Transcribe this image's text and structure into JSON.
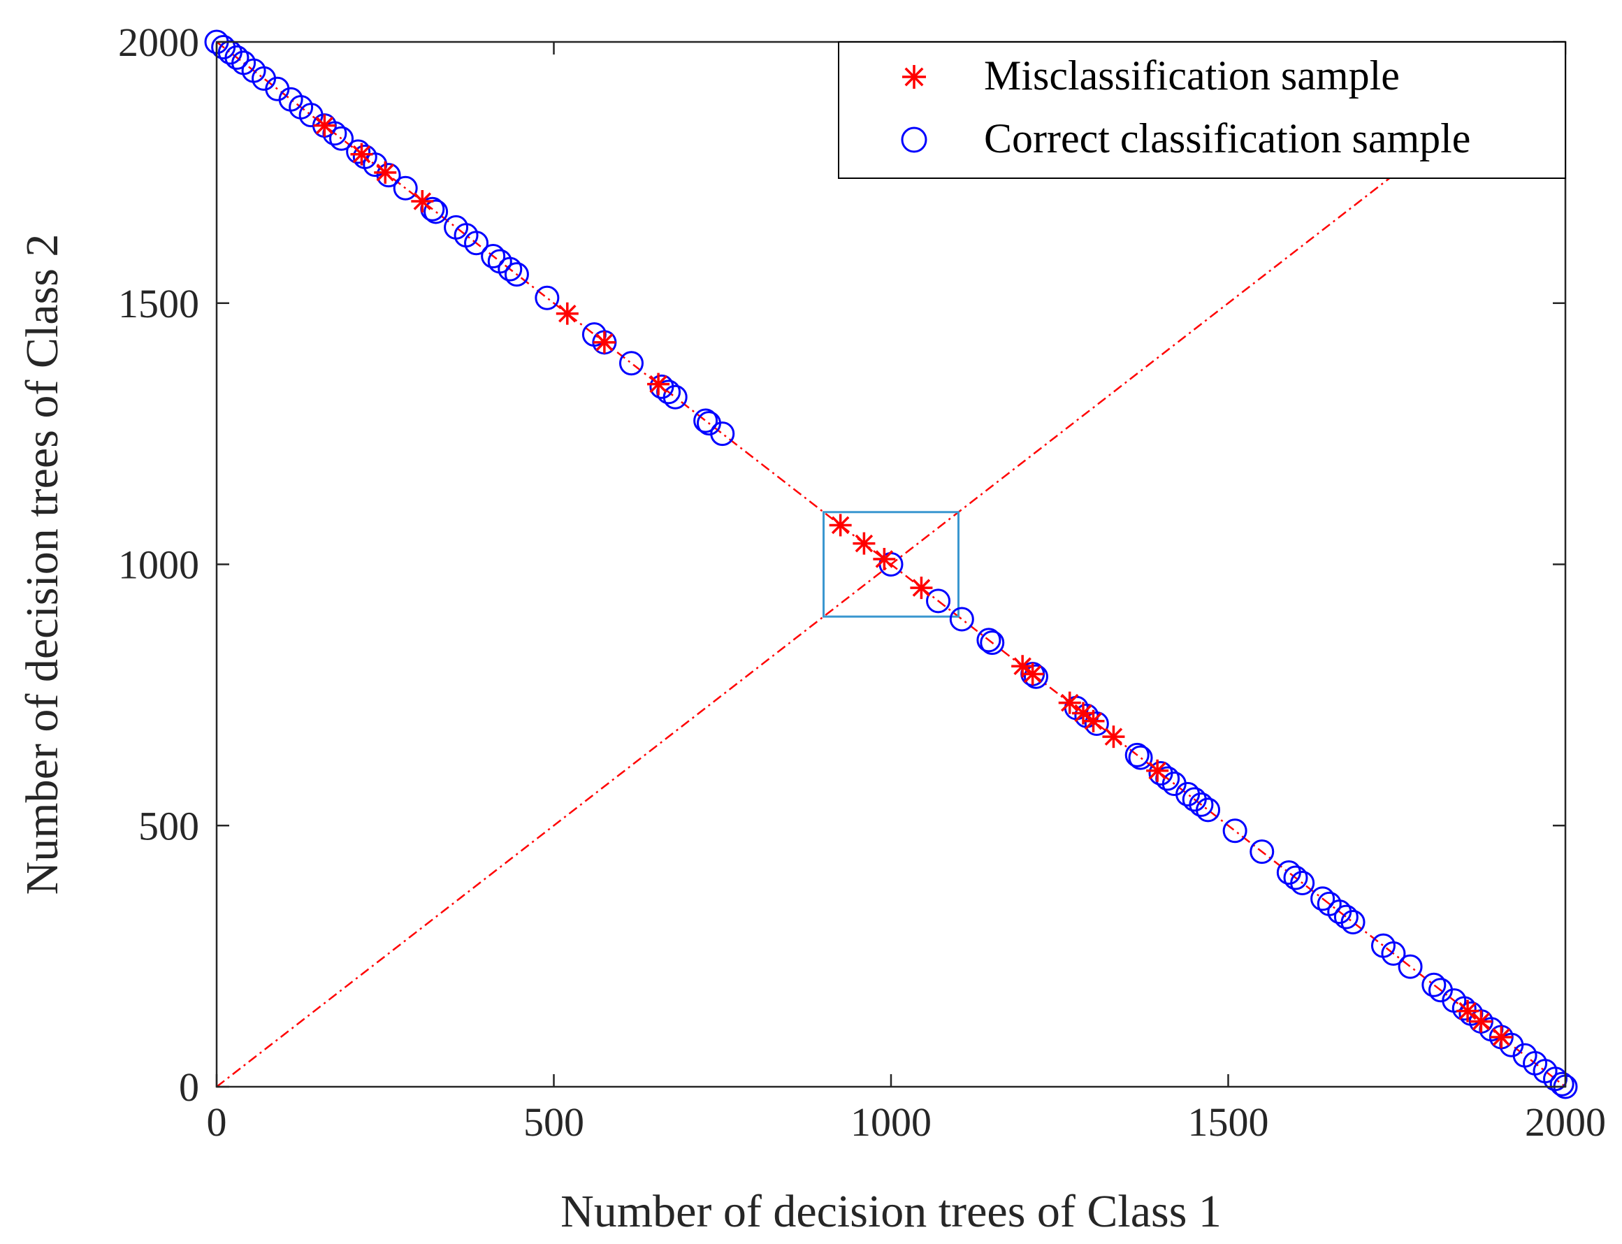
{
  "chart_data": {
    "type": "scatter",
    "title": "",
    "xlabel": "Number of decision trees of Class 1",
    "ylabel": "Number of decision trees of Class 2",
    "xlim": [
      0,
      2000
    ],
    "ylim": [
      0,
      2000
    ],
    "xticks": [
      0,
      500,
      1000,
      1500,
      2000
    ],
    "yticks": [
      0,
      500,
      1000,
      1500,
      2000
    ],
    "grid": false,
    "legend_position": "top-right",
    "reference_lines": [
      {
        "name": "x + y = 2000",
        "from": [
          0,
          2000
        ],
        "to": [
          2000,
          0
        ],
        "style": "dash-dot",
        "color": "#ff0000"
      },
      {
        "name": "y = x",
        "from": [
          0,
          0
        ],
        "to": [
          2000,
          2000
        ],
        "style": "dash-dot",
        "color": "#ff0000"
      }
    ],
    "highlight_box": {
      "x": [
        900,
        1100
      ],
      "y": [
        900,
        1100
      ],
      "color": "#3a97d0"
    },
    "series": [
      {
        "name": "Misclassification sample",
        "marker": "asterisk",
        "color": "#ff0000",
        "x": [
          160,
          215,
          250,
          305,
          520,
          575,
          655,
          925,
          960,
          990,
          1045,
          1195,
          1210,
          1265,
          1285,
          1300,
          1330,
          1395,
          1855,
          1875,
          1905
        ],
        "y": [
          1840,
          1785,
          1750,
          1695,
          1480,
          1425,
          1345,
          1075,
          1040,
          1010,
          955,
          805,
          790,
          735,
          715,
          700,
          670,
          605,
          145,
          125,
          95
        ]
      },
      {
        "name": "Correct classification sample",
        "marker": "circle",
        "color": "#0000ff",
        "x": [
          0,
          10,
          20,
          30,
          40,
          55,
          70,
          90,
          110,
          125,
          140,
          160,
          175,
          185,
          210,
          220,
          235,
          255,
          280,
          320,
          325,
          355,
          370,
          385,
          410,
          420,
          435,
          445,
          490,
          560,
          575,
          615,
          660,
          670,
          680,
          725,
          730,
          750,
          1000,
          1070,
          1105,
          1145,
          1150,
          1210,
          1215,
          1275,
          1290,
          1305,
          1365,
          1370,
          1400,
          1410,
          1420,
          1440,
          1450,
          1460,
          1470,
          1510,
          1550,
          1590,
          1600,
          1610,
          1640,
          1650,
          1665,
          1675,
          1685,
          1730,
          1745,
          1770,
          1805,
          1815,
          1835,
          1850,
          1860,
          1875,
          1890,
          1905,
          1920,
          1940,
          1955,
          1970,
          1985,
          1995,
          2000
        ],
        "y": [
          2000,
          1990,
          1980,
          1970,
          1960,
          1945,
          1930,
          1910,
          1890,
          1875,
          1860,
          1840,
          1825,
          1815,
          1790,
          1780,
          1765,
          1745,
          1720,
          1680,
          1675,
          1645,
          1630,
          1615,
          1590,
          1580,
          1565,
          1555,
          1510,
          1440,
          1425,
          1385,
          1340,
          1330,
          1320,
          1275,
          1270,
          1250,
          1000,
          930,
          895,
          855,
          850,
          790,
          785,
          725,
          710,
          695,
          635,
          630,
          600,
          590,
          580,
          560,
          550,
          540,
          530,
          490,
          450,
          410,
          400,
          390,
          360,
          350,
          335,
          325,
          315,
          270,
          255,
          230,
          195,
          185,
          165,
          150,
          140,
          125,
          110,
          95,
          80,
          60,
          45,
          30,
          15,
          5,
          0
        ]
      }
    ]
  }
}
